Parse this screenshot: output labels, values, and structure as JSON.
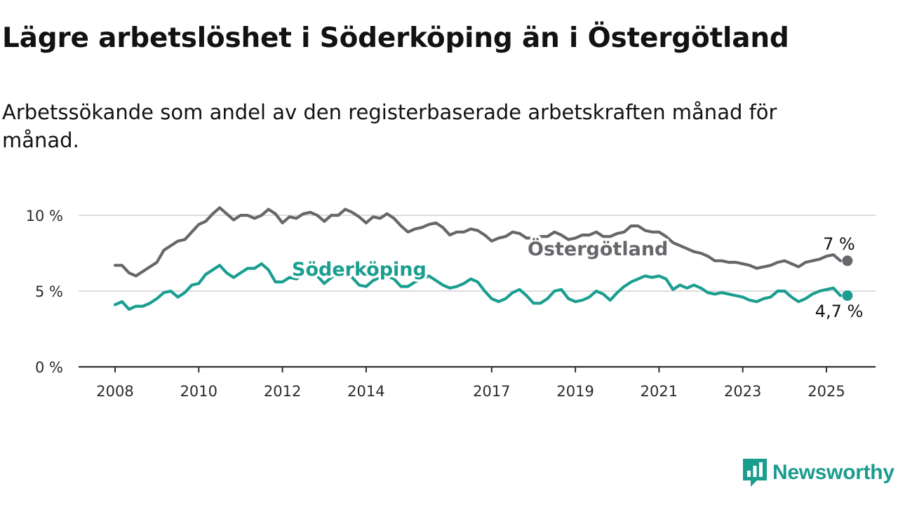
{
  "title": "Lägre arbetslöshet i Söderköping än i Östergötland",
  "subtitle": "Arbetssökande som andel av den registerbaserade arbetskraften månad för månad.",
  "brand": {
    "name": "Newsworthy",
    "icon": "newsworthy-logo-icon",
    "color": "#1a9c8e"
  },
  "chart_data": {
    "type": "line",
    "title": "Lägre arbetslöshet i Söderköping än i Östergötland",
    "subtitle": "Arbetssökande som andel av den registerbaserade arbetskraften månad för månad.",
    "xlabel": "",
    "ylabel": "",
    "x_ticks": [
      "2008",
      "2010",
      "2012",
      "2014",
      "2017",
      "2019",
      "2021",
      "2023",
      "2025"
    ],
    "y_ticks": [
      "0 %",
      "5 %",
      "10 %"
    ],
    "ylim": [
      0,
      11
    ],
    "grid": "horizontal",
    "series": [
      {
        "name": "Östergötland",
        "color": "#68666b",
        "end_label": "7 %",
        "points": [
          [
            "2008-01",
            6.7
          ],
          [
            "2008-03",
            6.7
          ],
          [
            "2008-05",
            6.2
          ],
          [
            "2008-07",
            6.0
          ],
          [
            "2008-09",
            6.3
          ],
          [
            "2008-11",
            6.6
          ],
          [
            "2009-01",
            6.9
          ],
          [
            "2009-03",
            7.7
          ],
          [
            "2009-05",
            8.0
          ],
          [
            "2009-07",
            8.3
          ],
          [
            "2009-09",
            8.4
          ],
          [
            "2009-11",
            8.9
          ],
          [
            "2010-01",
            9.4
          ],
          [
            "2010-03",
            9.6
          ],
          [
            "2010-05",
            10.1
          ],
          [
            "2010-07",
            10.5
          ],
          [
            "2010-09",
            10.1
          ],
          [
            "2010-11",
            9.7
          ],
          [
            "2011-01",
            10.0
          ],
          [
            "2011-03",
            10.0
          ],
          [
            "2011-05",
            9.8
          ],
          [
            "2011-07",
            10.0
          ],
          [
            "2011-09",
            10.4
          ],
          [
            "2011-11",
            10.1
          ],
          [
            "2012-01",
            9.5
          ],
          [
            "2012-03",
            9.9
          ],
          [
            "2012-05",
            9.8
          ],
          [
            "2012-07",
            10.1
          ],
          [
            "2012-09",
            10.2
          ],
          [
            "2012-11",
            10.0
          ],
          [
            "2013-01",
            9.6
          ],
          [
            "2013-03",
            10.0
          ],
          [
            "2013-05",
            10.0
          ],
          [
            "2013-07",
            10.4
          ],
          [
            "2013-09",
            10.2
          ],
          [
            "2013-11",
            9.9
          ],
          [
            "2014-01",
            9.5
          ],
          [
            "2014-03",
            9.9
          ],
          [
            "2014-05",
            9.8
          ],
          [
            "2014-07",
            10.1
          ],
          [
            "2014-09",
            9.8
          ],
          [
            "2014-11",
            9.3
          ],
          [
            "2015-01",
            8.9
          ],
          [
            "2015-03",
            9.1
          ],
          [
            "2015-05",
            9.2
          ],
          [
            "2015-07",
            9.4
          ],
          [
            "2015-09",
            9.5
          ],
          [
            "2015-11",
            9.2
          ],
          [
            "2016-01",
            8.7
          ],
          [
            "2016-03",
            8.9
          ],
          [
            "2016-05",
            8.9
          ],
          [
            "2016-07",
            9.1
          ],
          [
            "2016-09",
            9.0
          ],
          [
            "2016-11",
            8.7
          ],
          [
            "2017-01",
            8.3
          ],
          [
            "2017-03",
            8.5
          ],
          [
            "2017-05",
            8.6
          ],
          [
            "2017-07",
            8.9
          ],
          [
            "2017-09",
            8.8
          ],
          [
            "2017-11",
            8.5
          ],
          [
            "2018-01",
            8.5
          ],
          [
            "2018-03",
            8.6
          ],
          [
            "2018-05",
            8.6
          ],
          [
            "2018-07",
            8.9
          ],
          [
            "2018-09",
            8.7
          ],
          [
            "2018-11",
            8.4
          ],
          [
            "2019-01",
            8.5
          ],
          [
            "2019-03",
            8.7
          ],
          [
            "2019-05",
            8.7
          ],
          [
            "2019-07",
            8.9
          ],
          [
            "2019-09",
            8.6
          ],
          [
            "2019-11",
            8.6
          ],
          [
            "2020-01",
            8.8
          ],
          [
            "2020-03",
            8.9
          ],
          [
            "2020-05",
            9.3
          ],
          [
            "2020-07",
            9.3
          ],
          [
            "2020-09",
            9.0
          ],
          [
            "2020-11",
            8.9
          ],
          [
            "2021-01",
            8.9
          ],
          [
            "2021-03",
            8.6
          ],
          [
            "2021-05",
            8.2
          ],
          [
            "2021-07",
            8.0
          ],
          [
            "2021-09",
            7.8
          ],
          [
            "2021-11",
            7.6
          ],
          [
            "2022-01",
            7.5
          ],
          [
            "2022-03",
            7.3
          ],
          [
            "2022-05",
            7.0
          ],
          [
            "2022-07",
            7.0
          ],
          [
            "2022-09",
            6.9
          ],
          [
            "2022-11",
            6.9
          ],
          [
            "2023-01",
            6.8
          ],
          [
            "2023-03",
            6.7
          ],
          [
            "2023-05",
            6.5
          ],
          [
            "2023-07",
            6.6
          ],
          [
            "2023-09",
            6.7
          ],
          [
            "2023-11",
            6.9
          ],
          [
            "2024-01",
            7.0
          ],
          [
            "2024-03",
            6.8
          ],
          [
            "2024-05",
            6.6
          ],
          [
            "2024-07",
            6.9
          ],
          [
            "2024-09",
            7.0
          ],
          [
            "2024-11",
            7.1
          ],
          [
            "2025-01",
            7.3
          ],
          [
            "2025-03",
            7.4
          ],
          [
            "2025-05",
            7.0
          ]
        ]
      },
      {
        "name": "Söderköping",
        "color": "#1b9e90",
        "end_label": "4,7 %",
        "points": [
          [
            "2008-01",
            4.1
          ],
          [
            "2008-03",
            4.3
          ],
          [
            "2008-05",
            3.8
          ],
          [
            "2008-07",
            4.0
          ],
          [
            "2008-09",
            4.0
          ],
          [
            "2008-11",
            4.2
          ],
          [
            "2009-01",
            4.5
          ],
          [
            "2009-03",
            4.9
          ],
          [
            "2009-05",
            5.0
          ],
          [
            "2009-07",
            4.6
          ],
          [
            "2009-09",
            4.9
          ],
          [
            "2009-11",
            5.4
          ],
          [
            "2010-01",
            5.5
          ],
          [
            "2010-03",
            6.1
          ],
          [
            "2010-05",
            6.4
          ],
          [
            "2010-07",
            6.7
          ],
          [
            "2010-09",
            6.2
          ],
          [
            "2010-11",
            5.9
          ],
          [
            "2011-01",
            6.2
          ],
          [
            "2011-03",
            6.5
          ],
          [
            "2011-05",
            6.5
          ],
          [
            "2011-07",
            6.8
          ],
          [
            "2011-09",
            6.4
          ],
          [
            "2011-11",
            5.6
          ],
          [
            "2012-01",
            5.6
          ],
          [
            "2012-03",
            5.9
          ],
          [
            "2012-05",
            5.8
          ],
          [
            "2012-07",
            6.1
          ],
          [
            "2012-09",
            6.4
          ],
          [
            "2012-11",
            6.0
          ],
          [
            "2013-01",
            5.5
          ],
          [
            "2013-03",
            5.9
          ],
          [
            "2013-05",
            6.2
          ],
          [
            "2013-07",
            6.2
          ],
          [
            "2013-09",
            5.9
          ],
          [
            "2013-11",
            5.4
          ],
          [
            "2014-01",
            5.3
          ],
          [
            "2014-03",
            5.7
          ],
          [
            "2014-05",
            5.9
          ],
          [
            "2014-07",
            6.0
          ],
          [
            "2014-09",
            5.8
          ],
          [
            "2014-11",
            5.3
          ],
          [
            "2015-01",
            5.3
          ],
          [
            "2015-03",
            5.6
          ],
          [
            "2015-05",
            5.8
          ],
          [
            "2015-07",
            6.0
          ],
          [
            "2015-09",
            5.7
          ],
          [
            "2015-11",
            5.4
          ],
          [
            "2016-01",
            5.2
          ],
          [
            "2016-03",
            5.3
          ],
          [
            "2016-05",
            5.5
          ],
          [
            "2016-07",
            5.8
          ],
          [
            "2016-09",
            5.6
          ],
          [
            "2016-11",
            5.0
          ],
          [
            "2017-01",
            4.5
          ],
          [
            "2017-03",
            4.3
          ],
          [
            "2017-05",
            4.5
          ],
          [
            "2017-07",
            4.9
          ],
          [
            "2017-09",
            5.1
          ],
          [
            "2017-11",
            4.7
          ],
          [
            "2018-01",
            4.2
          ],
          [
            "2018-03",
            4.2
          ],
          [
            "2018-05",
            4.5
          ],
          [
            "2018-07",
            5.0
          ],
          [
            "2018-09",
            5.1
          ],
          [
            "2018-11",
            4.5
          ],
          [
            "2019-01",
            4.3
          ],
          [
            "2019-03",
            4.4
          ],
          [
            "2019-05",
            4.6
          ],
          [
            "2019-07",
            5.0
          ],
          [
            "2019-09",
            4.8
          ],
          [
            "2019-11",
            4.4
          ],
          [
            "2020-01",
            4.9
          ],
          [
            "2020-03",
            5.3
          ],
          [
            "2020-05",
            5.6
          ],
          [
            "2020-07",
            5.8
          ],
          [
            "2020-09",
            6.0
          ],
          [
            "2020-11",
            5.9
          ],
          [
            "2021-01",
            6.0
          ],
          [
            "2021-03",
            5.8
          ],
          [
            "2021-05",
            5.1
          ],
          [
            "2021-07",
            5.4
          ],
          [
            "2021-09",
            5.2
          ],
          [
            "2021-11",
            5.4
          ],
          [
            "2022-01",
            5.2
          ],
          [
            "2022-03",
            4.9
          ],
          [
            "2022-05",
            4.8
          ],
          [
            "2022-07",
            4.9
          ],
          [
            "2022-09",
            4.8
          ],
          [
            "2022-11",
            4.7
          ],
          [
            "2023-01",
            4.6
          ],
          [
            "2023-03",
            4.4
          ],
          [
            "2023-05",
            4.3
          ],
          [
            "2023-07",
            4.5
          ],
          [
            "2023-09",
            4.6
          ],
          [
            "2023-11",
            5.0
          ],
          [
            "2024-01",
            5.0
          ],
          [
            "2024-03",
            4.6
          ],
          [
            "2024-05",
            4.3
          ],
          [
            "2024-07",
            4.5
          ],
          [
            "2024-09",
            4.8
          ],
          [
            "2024-11",
            5.0
          ],
          [
            "2025-01",
            5.1
          ],
          [
            "2025-03",
            5.2
          ],
          [
            "2025-05",
            4.7
          ]
        ]
      }
    ]
  }
}
